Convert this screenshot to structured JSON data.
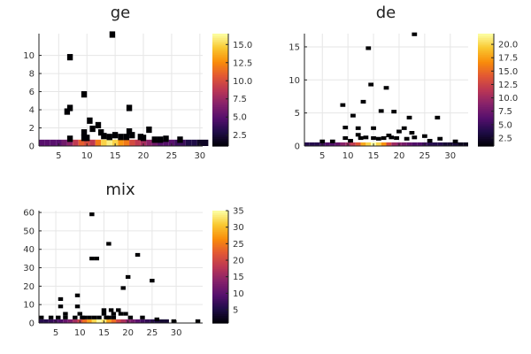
{
  "chart_data": [
    {
      "type": "heatmap",
      "title": "ge",
      "xlim": [
        1.5,
        30.5
      ],
      "ylim": [
        0,
        12.4
      ],
      "x_ticks": [
        5,
        10,
        15,
        20,
        25,
        30
      ],
      "y_ticks": [
        0,
        2,
        4,
        6,
        8,
        10
      ],
      "grid": true,
      "legend": "colorbar-right",
      "colorbar": {
        "min": 1,
        "max": 16.5,
        "ticks": [
          "2.5",
          "5.0",
          "7.5",
          "10.0",
          "12.5",
          "15.0"
        ]
      },
      "cell_width": 1,
      "cell_height": 0.7,
      "bottom_row": [
        5,
        5,
        5,
        5,
        6,
        7,
        9,
        11,
        10,
        9,
        12,
        15,
        16,
        15,
        13,
        12,
        10,
        9,
        8,
        7,
        6,
        5,
        5,
        5,
        4,
        4,
        3,
        3,
        2,
        2
      ],
      "cells": [
        [
          7,
          9.8,
          1
        ],
        [
          6.5,
          3.8,
          1
        ],
        [
          7,
          4.2,
          1
        ],
        [
          7,
          0.8,
          1
        ],
        [
          9.5,
          5.7,
          1
        ],
        [
          10.5,
          2.8,
          1
        ],
        [
          9.5,
          1.5,
          1
        ],
        [
          11,
          1.9,
          1
        ],
        [
          12,
          2.3,
          1
        ],
        [
          12.5,
          1.5,
          1
        ],
        [
          14.5,
          12.3,
          1
        ],
        [
          15,
          1.2,
          1
        ],
        [
          16,
          1.0,
          1
        ],
        [
          17,
          1.0,
          1
        ],
        [
          17.5,
          4.2,
          1
        ],
        [
          17.5,
          1.6,
          1
        ],
        [
          18,
          1.2,
          1
        ],
        [
          19.5,
          1.0,
          1
        ],
        [
          21,
          1.8,
          1
        ],
        [
          22,
          0.7,
          1
        ],
        [
          23,
          0.7,
          1
        ],
        [
          26.5,
          0.7,
          1
        ],
        [
          9.5,
          0.9,
          1
        ],
        [
          10,
          0.9,
          1
        ],
        [
          13,
          1.1,
          1
        ],
        [
          14,
          1.0,
          1
        ],
        [
          20,
          0.9,
          1
        ],
        [
          24,
          0.8,
          1
        ]
      ]
    },
    {
      "type": "heatmap",
      "title": "de",
      "xlim": [
        1.5,
        33.5
      ],
      "ylim": [
        0,
        17
      ],
      "x_ticks": [
        5,
        10,
        15,
        20,
        25,
        30
      ],
      "y_ticks": [
        0,
        5,
        10,
        15
      ],
      "grid": true,
      "legend": "colorbar-right",
      "colorbar": {
        "min": 1,
        "max": 22,
        "ticks": [
          "2.5",
          "5.0",
          "7.5",
          "10.0",
          "12.5",
          "15.0",
          "17.5",
          "20.0"
        ]
      },
      "cell_width": 1,
      "cell_height": 0.55,
      "bottom_row": [
        4,
        4,
        4,
        5,
        6,
        6,
        7,
        9,
        10,
        12,
        14,
        18,
        20,
        22,
        20,
        17,
        13,
        10,
        9,
        8,
        7,
        6,
        6,
        5,
        4,
        4,
        4,
        3,
        3,
        3,
        2,
        2
      ],
      "cells": [
        [
          5,
          0.7,
          1
        ],
        [
          7,
          0.7,
          1
        ],
        [
          9,
          6.2,
          1
        ],
        [
          9.5,
          2.8,
          1
        ],
        [
          9.5,
          1.2,
          1
        ],
        [
          10.5,
          0.8,
          1
        ],
        [
          11,
          4.6,
          1
        ],
        [
          12,
          2.7,
          1
        ],
        [
          12.5,
          1.2,
          1
        ],
        [
          13,
          6.7,
          1
        ],
        [
          14,
          14.8,
          1
        ],
        [
          14.5,
          9.3,
          1
        ],
        [
          15,
          2.7,
          1
        ],
        [
          15,
          1.2,
          1
        ],
        [
          16,
          1.1,
          1
        ],
        [
          16.5,
          5.3,
          1
        ],
        [
          17,
          1.2,
          1
        ],
        [
          17.5,
          8.8,
          1
        ],
        [
          18,
          1.6,
          1
        ],
        [
          19,
          5.2,
          1
        ],
        [
          19.5,
          1.2,
          1
        ],
        [
          20,
          2.2,
          1
        ],
        [
          21,
          2.7,
          1
        ],
        [
          21.5,
          1.1,
          1
        ],
        [
          22,
          4.3,
          1
        ],
        [
          22.5,
          2.0,
          1
        ],
        [
          23,
          16.9,
          1
        ],
        [
          23,
          1.3,
          1
        ],
        [
          25,
          1.5,
          1
        ],
        [
          26,
          0.8,
          1
        ],
        [
          27.5,
          4.3,
          1
        ],
        [
          28,
          1.1,
          1
        ],
        [
          31,
          0.7,
          1
        ],
        [
          12,
          1.7,
          1
        ],
        [
          13.5,
          1.3,
          1
        ],
        [
          18.5,
          1.3,
          1
        ]
      ]
    },
    {
      "type": "heatmap",
      "title": "mix",
      "xlim": [
        1.5,
        35.5
      ],
      "ylim": [
        0,
        61
      ],
      "x_ticks": [
        5,
        10,
        15,
        20,
        25,
        30
      ],
      "y_ticks": [
        0,
        10,
        20,
        30,
        40,
        50,
        60
      ],
      "grid": true,
      "legend": "colorbar-right",
      "colorbar": {
        "min": 1,
        "max": 35,
        "ticks": [
          "5",
          "10",
          "15",
          "20",
          "25",
          "30",
          "35"
        ]
      },
      "cell_width": 1,
      "cell_height": 2,
      "bottom_row": [
        6,
        6,
        7,
        8,
        9,
        11,
        13,
        16,
        20,
        24,
        28,
        32,
        35,
        33,
        28,
        24,
        20,
        17,
        14,
        12,
        10,
        8,
        7,
        6,
        5,
        4,
        4
      ],
      "cells": [
        [
          2,
          3,
          1
        ],
        [
          4,
          3,
          1
        ],
        [
          5.5,
          3,
          1
        ],
        [
          6,
          13,
          1
        ],
        [
          6,
          9,
          1
        ],
        [
          7,
          5,
          1
        ],
        [
          7,
          3,
          1
        ],
        [
          9,
          3,
          1
        ],
        [
          9.5,
          15,
          1
        ],
        [
          10,
          5,
          1
        ],
        [
          9.5,
          9,
          1
        ],
        [
          10.5,
          3,
          1
        ],
        [
          12.5,
          35,
          1
        ],
        [
          13.5,
          35,
          1
        ],
        [
          12.5,
          59,
          1
        ],
        [
          13,
          3,
          1
        ],
        [
          14,
          3,
          1
        ],
        [
          15,
          7,
          1
        ],
        [
          15,
          5,
          1
        ],
        [
          15.5,
          3,
          1
        ],
        [
          16,
          43,
          1
        ],
        [
          16.5,
          7,
          1
        ],
        [
          17,
          5,
          1
        ],
        [
          17,
          3,
          1
        ],
        [
          18,
          7,
          1
        ],
        [
          19,
          19,
          1
        ],
        [
          19.5,
          5,
          1
        ],
        [
          20,
          25,
          1
        ],
        [
          20.5,
          3,
          1
        ],
        [
          22,
          37,
          1
        ],
        [
          23,
          3,
          1
        ],
        [
          25,
          23,
          1
        ],
        [
          26,
          2,
          1
        ],
        [
          29.5,
          1,
          1
        ],
        [
          34.5,
          1,
          1
        ],
        [
          11,
          3,
          1
        ],
        [
          12,
          3,
          1
        ],
        [
          16,
          3,
          1
        ],
        [
          18.5,
          5,
          1
        ]
      ]
    }
  ]
}
